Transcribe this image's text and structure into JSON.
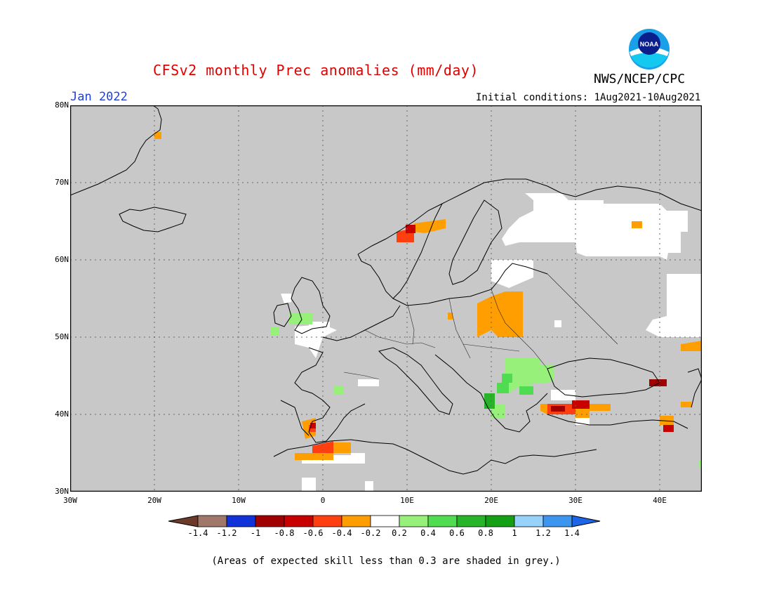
{
  "title": "CFSv2 monthly Prec anomalies (mm/day)",
  "org": "NWS/NCEP/CPC",
  "logo_text": "NOAA",
  "month": "Jan 2022",
  "initial_conditions": "Initial conditions: 1Aug2021-10Aug2021",
  "footnote": "(Areas of expected skill less than 0.3 are shaded in grey.)",
  "lat_labels": [
    "80N",
    "70N",
    "60N",
    "50N",
    "40N",
    "30N"
  ],
  "lon_labels": [
    "30W",
    "20W",
    "10W",
    "0",
    "10E",
    "20E",
    "30E",
    "40E"
  ],
  "colorbar": {
    "labels": [
      "-1.4",
      "-1.2",
      "-1",
      "-0.8",
      "-0.6",
      "-0.4",
      "-0.2",
      "0.2",
      "0.4",
      "0.6",
      "0.8",
      "1",
      "1.2",
      "1.4"
    ],
    "colors": [
      "#6b3a2a",
      "#a0786a",
      "#1032d8",
      "#a00000",
      "#c80000",
      "#ff3f10",
      "#ff9e00",
      "#ffffff",
      "#96f07a",
      "#50dc50",
      "#28b428",
      "#14a014",
      "#96d2fa",
      "#3c96f0",
      "#1e64e6"
    ]
  },
  "colors": {
    "land_skill_low": "#c8c8c8",
    "title": "#e00000",
    "month": "#1f3fd8"
  }
}
